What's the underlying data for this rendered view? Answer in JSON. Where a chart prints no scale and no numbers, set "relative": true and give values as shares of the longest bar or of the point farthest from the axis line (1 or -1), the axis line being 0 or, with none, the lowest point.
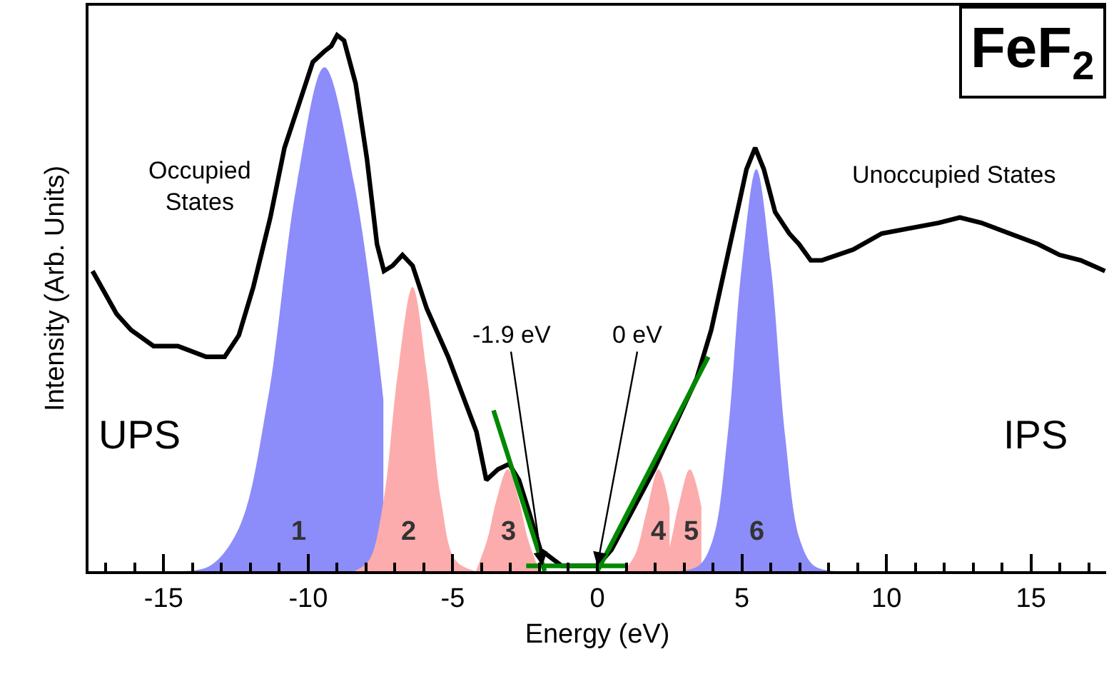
{
  "chart_data": {
    "type": "line",
    "relative": true,
    "xlabel": "Energy (eV)",
    "ylabel": "Intensity (Arb. Units)",
    "xlim": [
      -17.6,
      17.6
    ],
    "xticks": [
      {
        "value": -17,
        "label": null
      },
      {
        "value": -16,
        "label": null
      },
      -15,
      {
        "value": -14,
        "label": null
      },
      {
        "value": -13,
        "label": null
      },
      {
        "value": -12,
        "label": null
      },
      {
        "value": -11,
        "label": null
      },
      -10,
      {
        "value": -9,
        "label": null
      },
      {
        "value": -8,
        "label": null
      },
      {
        "value": -7,
        "label": null
      },
      {
        "value": -6,
        "label": null
      },
      -5,
      {
        "value": -4,
        "label": null
      },
      {
        "value": -3,
        "label": null
      },
      {
        "value": -2,
        "label": null
      },
      {
        "value": -1,
        "label": null
      },
      0,
      {
        "value": 1,
        "label": null
      },
      {
        "value": 2,
        "label": null
      },
      {
        "value": 3,
        "label": null
      },
      {
        "value": 4,
        "label": null
      },
      5,
      {
        "value": 6,
        "label": null
      },
      {
        "value": 7,
        "label": null
      },
      {
        "value": 8,
        "label": null
      },
      {
        "value": 9,
        "label": null
      },
      10,
      {
        "value": 11,
        "label": null
      },
      {
        "value": 12,
        "label": null
      },
      {
        "value": 13,
        "label": null
      },
      {
        "value": 14,
        "label": null
      },
      15,
      {
        "value": 16,
        "label": null
      },
      {
        "value": 17,
        "label": null
      }
    ],
    "series": [
      {
        "type": "area",
        "color": "#8c8cfa",
        "x": [
          -14.4,
          -13.4,
          -12.4,
          -11.4,
          -10.4,
          -9.44,
          -8.4,
          -7.4
        ],
        "values": [
          0.0,
          0.01,
          0.08,
          0.32,
          0.72,
          0.94,
          0.72,
          0.32
        ]
      },
      {
        "type": "area",
        "color": "#fcacac",
        "x": [
          -8.4,
          -7.9,
          -7.4,
          -6.9,
          -6.39,
          -5.9,
          -5.4,
          -4.9,
          -4.2
        ],
        "values": [
          0.0,
          0.02,
          0.13,
          0.37,
          0.53,
          0.37,
          0.13,
          0.02,
          0.0
        ]
      },
      {
        "type": "area",
        "color": "#fcacac",
        "x": [
          -4.2,
          -3.8,
          -3.5,
          -3.1,
          -2.7,
          -2.4,
          -2.0
        ],
        "values": [
          0.0,
          0.06,
          0.13,
          0.19,
          0.13,
          0.06,
          0.0
        ]
      },
      {
        "type": "area",
        "color": "#fcacac",
        "x": [
          0.9,
          1.3,
          1.7,
          2.12,
          2.5
        ],
        "values": [
          0.0,
          0.03,
          0.11,
          0.19,
          0.12
        ]
      },
      {
        "type": "area",
        "color": "#fcacac",
        "x": [
          2.0,
          2.4,
          2.8,
          3.2,
          3.6
        ],
        "values": [
          0.0,
          0.03,
          0.12,
          0.19,
          0.12
        ]
      },
      {
        "type": "area",
        "color": "#8c8cfa",
        "x": [
          2.7,
          3.5,
          4.0,
          4.5,
          5.0,
          5.5,
          6.0,
          6.5,
          7.0,
          7.5,
          8.3
        ],
        "values": [
          0.0,
          0.01,
          0.06,
          0.25,
          0.57,
          0.75,
          0.57,
          0.25,
          0.06,
          0.01,
          0.0
        ]
      },
      {
        "color": "#000000",
        "x": [
          -17.46,
          -16.63,
          -16.13,
          -15.35,
          -14.51,
          -13.53,
          -12.89,
          -12.4,
          -11.9,
          -11.31,
          -10.82,
          -10.33,
          -9.84,
          -9.44,
          -9.2,
          -9.0,
          -8.76,
          -8.36,
          -7.97,
          -7.62,
          -7.38,
          -7.08,
          -6.74,
          -6.39,
          -5.9,
          -5.16,
          -4.67,
          -4.18,
          -3.84,
          -3.44,
          -3.05,
          -2.71,
          -2.36,
          -1.97,
          -1.23,
          -0.49,
          0.0,
          0.49,
          1.97,
          3.44,
          3.94,
          4.43,
          4.92,
          5.16,
          5.46,
          5.76,
          6.15,
          6.64,
          6.98,
          7.38,
          7.77,
          8.85,
          9.84,
          10.82,
          11.81,
          12.54,
          13.28,
          14.26,
          15.25,
          15.99,
          16.72,
          17.56
        ],
        "values": [
          0.56,
          0.48,
          0.45,
          0.42,
          0.42,
          0.4,
          0.4,
          0.44,
          0.53,
          0.66,
          0.79,
          0.87,
          0.95,
          0.97,
          0.98,
          1.0,
          0.99,
          0.91,
          0.77,
          0.61,
          0.56,
          0.57,
          0.59,
          0.57,
          0.49,
          0.4,
          0.33,
          0.26,
          0.17,
          0.19,
          0.2,
          0.17,
          0.11,
          0.04,
          0.01,
          0.01,
          0.01,
          0.04,
          0.19,
          0.36,
          0.45,
          0.57,
          0.69,
          0.75,
          0.79,
          0.75,
          0.67,
          0.63,
          0.61,
          0.58,
          0.58,
          0.6,
          0.63,
          0.64,
          0.65,
          0.66,
          0.65,
          0.63,
          0.61,
          0.59,
          0.58,
          0.56
        ]
      },
      {
        "type": "line",
        "color": "#008800",
        "x": [
          -3.59,
          -1.82
        ],
        "values": [
          0.3,
          0.0
        ]
      },
      {
        "type": "line",
        "color": "#008800",
        "x": [
          -2.46,
          0.98
        ],
        "values": [
          0.01,
          0.01
        ]
      },
      {
        "type": "line",
        "color": "#008800",
        "x": [
          0.0,
          3.84
        ],
        "values": [
          0.0,
          0.4
        ]
      }
    ],
    "annotations": [
      "Occupied\nStates",
      "Unoccupied States",
      "UPS",
      "IPS",
      "FeF$_{2}$",
      {
        "text": "-1.9 eV",
        "x": -1.9,
        "y": 0.01
      },
      {
        "text": "0 eV",
        "x": 0,
        "y": 0.01
      },
      "1",
      "2",
      "3",
      "4",
      "5",
      "6"
    ]
  }
}
